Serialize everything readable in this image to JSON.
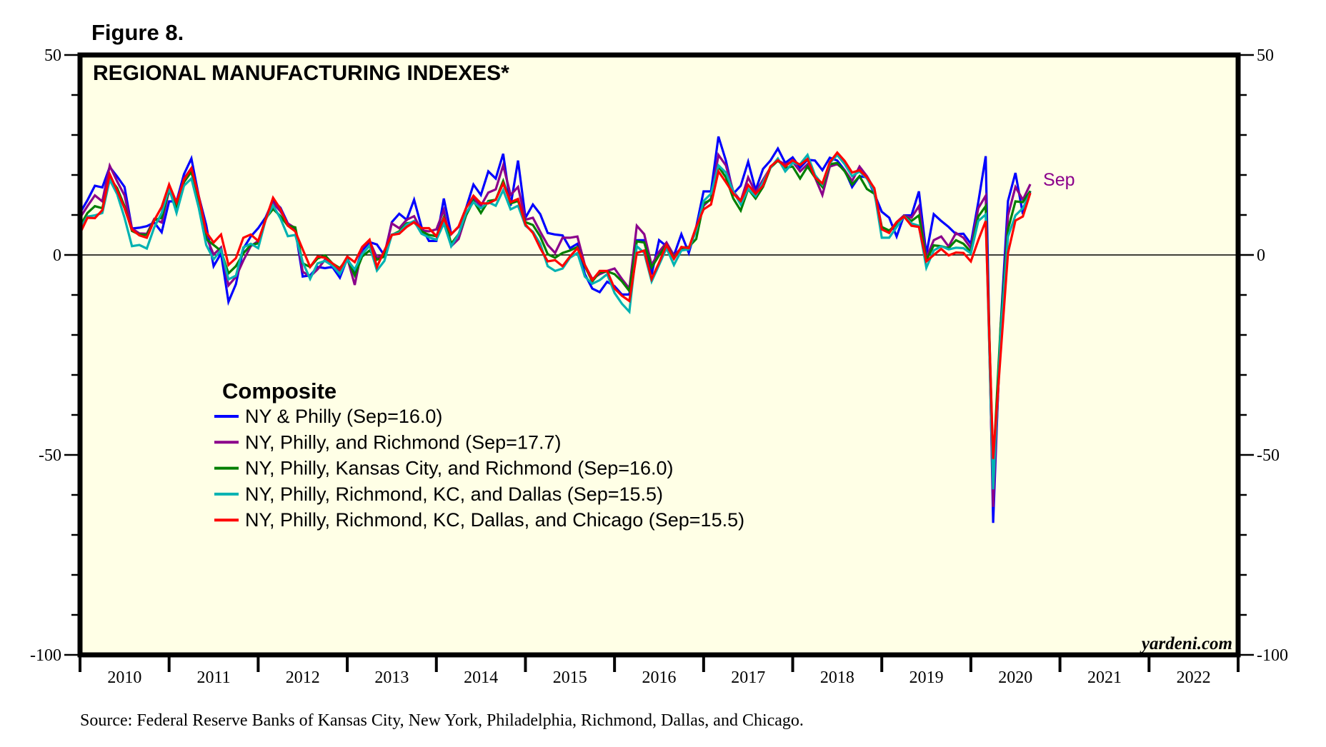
{
  "figure_label": "Figure 8.",
  "source_note": "Source: Federal Reserve Banks of Kansas City, New York, Philadelphia, Richmond, Dallas, and Chicago.",
  "brand": "yardeni.com",
  "chart_data": {
    "type": "line",
    "title": "REGIONAL MANUFACTURING INDEXES*",
    "xlabel": "",
    "ylabel": "",
    "x_start": "2010-01",
    "frequency": "monthly",
    "x_tick_labels": [
      "2010",
      "2011",
      "2012",
      "2013",
      "2014",
      "2015",
      "2016",
      "2017",
      "2018",
      "2019",
      "2020",
      "2021",
      "2022"
    ],
    "xlim": [
      "2010-01",
      "2022-12"
    ],
    "ylim": [
      -100,
      50
    ],
    "y_major_ticks": [
      50,
      0,
      -50,
      -100
    ],
    "y_minor_step": 10,
    "y_axis_sides": [
      "left",
      "right"
    ],
    "zero_line": true,
    "grid": false,
    "background": "#ffffe6",
    "end_annotation": {
      "text": "Sep",
      "color": "#8b008b"
    },
    "legend": {
      "title": "Composite",
      "placement": "center-left"
    },
    "series": [
      {
        "name": "NY & Philly (Sep=16.0)",
        "color": "#0000ff",
        "values": [
          10.5,
          13.7,
          17.3,
          16.9,
          22.0,
          19.6,
          17.0,
          6.6,
          6.8,
          7.2,
          8.1,
          5.7,
          13.4,
          13.4,
          20.2,
          24.1,
          14.6,
          7.5,
          -2.8,
          0.4,
          -11.7,
          -7.3,
          1.6,
          4.6,
          6.7,
          9.4,
          13.6,
          11.8,
          7.9,
          6.4,
          -5.4,
          -5.1,
          -3.0,
          -3.3,
          -3.0,
          -5.7,
          -0.9,
          -4.2,
          1.1,
          3.2,
          2.6,
          -0.1,
          8.2,
          10.3,
          8.8,
          13.8,
          7.0,
          3.5,
          3.5,
          14.1,
          5.2,
          7.0,
          11.7,
          17.6,
          15.0,
          20.9,
          19.1,
          25.3,
          12.3,
          23.6,
          9.3,
          12.6,
          10.2,
          5.5,
          5.1,
          4.9,
          1.7,
          2.8,
          -4.8,
          -8.4,
          -9.3,
          -6.7,
          -7.8,
          -9.9,
          -9.9,
          3.7,
          3.7,
          -4.9,
          3.7,
          2.2,
          -0.1,
          5.2,
          0.5,
          7.0,
          15.9,
          15.9,
          29.6,
          23.6,
          15.3,
          17.3,
          23.3,
          16.2,
          21.5,
          23.6,
          26.6,
          23.0,
          24.4,
          21.8,
          23.8,
          23.6,
          21.2,
          24.3,
          23.6,
          21.2,
          17.0,
          19.7,
          19.4,
          15.3,
          10.8,
          9.3,
          4.6,
          9.9,
          9.9,
          15.9,
          0.2,
          10.2,
          8.5,
          7.0,
          5.2,
          5.3,
          2.8,
          13.2,
          24.7,
          -67.0,
          -18.0,
          13.5,
          20.5,
          10.2,
          16.0
        ]
      },
      {
        "name": "NY, Philly, and Richmond (Sep=17.7)",
        "color": "#8b008b",
        "values": [
          9.3,
          12.2,
          14.9,
          13.4,
          22.3,
          18.4,
          14.9,
          6.6,
          5.4,
          5.3,
          9.0,
          8.1,
          16.1,
          12.0,
          19.1,
          21.7,
          13.4,
          4.6,
          0.1,
          1.9,
          -7.6,
          -5.5,
          -1.4,
          2.2,
          3.5,
          8.8,
          13.0,
          10.9,
          7.9,
          6.7,
          -4.2,
          -5.4,
          -3.6,
          -1.2,
          -2.4,
          -3.9,
          -0.7,
          -7.5,
          1.7,
          3.5,
          -0.7,
          0.2,
          7.9,
          6.7,
          8.8,
          9.7,
          6.1,
          5.9,
          6.4,
          11.2,
          2.2,
          4.0,
          9.9,
          14.1,
          12.3,
          15.6,
          16.4,
          22.4,
          15.0,
          17.0,
          8.8,
          9.3,
          5.8,
          2.5,
          0.5,
          4.3,
          4.3,
          4.6,
          -2.5,
          -6.0,
          -4.8,
          -4.0,
          -3.4,
          -6.0,
          -8.4,
          7.3,
          5.2,
          -2.5,
          0.8,
          3.1,
          -0.1,
          1.7,
          1.7,
          7.0,
          12.3,
          14.1,
          25.0,
          22.4,
          15.9,
          13.5,
          19.4,
          15.6,
          18.8,
          21.8,
          23.6,
          22.7,
          23.3,
          20.9,
          22.7,
          19.4,
          15.0,
          22.1,
          22.7,
          21.2,
          18.5,
          22.1,
          19.7,
          16.5,
          7.0,
          5.8,
          8.2,
          9.9,
          9.3,
          12.2,
          -0.7,
          3.7,
          4.6,
          2.1,
          5.5,
          4.3,
          1.7,
          11.7,
          14.8,
          -63.0,
          -20.0,
          9.9,
          17.0,
          13.8,
          17.7
        ]
      },
      {
        "name": "NY, Philly, Kansas City, and Richmond (Sep=16.0)",
        "color": "#007f00",
        "values": [
          7.2,
          10.5,
          12.2,
          11.7,
          19.3,
          16.7,
          12.2,
          6.0,
          5.1,
          5.0,
          8.7,
          9.3,
          16.4,
          12.2,
          18.2,
          20.8,
          13.1,
          4.0,
          2.5,
          1.0,
          -4.6,
          -2.8,
          0.4,
          2.5,
          2.9,
          9.1,
          11.5,
          9.7,
          7.3,
          6.9,
          -2.1,
          -3.0,
          -0.9,
          -0.1,
          -2.1,
          -3.3,
          -0.9,
          -5.1,
          -0.4,
          1.1,
          -1.2,
          -0.4,
          5.0,
          5.9,
          7.9,
          8.2,
          5.9,
          5.0,
          4.7,
          9.4,
          2.8,
          5.2,
          9.9,
          13.5,
          10.5,
          13.5,
          13.8,
          18.5,
          12.9,
          13.5,
          8.2,
          7.5,
          4.6,
          0.2,
          -0.7,
          0.5,
          1.1,
          2.0,
          -2.8,
          -6.6,
          -4.3,
          -4.1,
          -4.8,
          -6.6,
          -9.0,
          3.4,
          3.1,
          -3.1,
          -0.1,
          2.5,
          -0.7,
          1.7,
          2.0,
          4.0,
          12.9,
          13.8,
          22.1,
          19.4,
          14.1,
          11.1,
          16.5,
          14.1,
          17.0,
          21.8,
          23.6,
          21.8,
          22.1,
          19.1,
          22.1,
          19.4,
          17.0,
          22.7,
          23.0,
          20.9,
          17.6,
          19.7,
          16.5,
          15.3,
          7.0,
          6.1,
          7.6,
          9.7,
          8.5,
          9.9,
          -1.3,
          2.4,
          2.2,
          1.7,
          3.7,
          2.8,
          0.8,
          9.6,
          12.2,
          -53.0,
          -18.0,
          6.4,
          13.4,
          13.2,
          16.0
        ]
      },
      {
        "name": "NY, Philly, Richmond, KC, and Dallas (Sep=15.5)",
        "color": "#00b2b2",
        "values": [
          6.6,
          9.6,
          9.9,
          10.5,
          18.8,
          15.2,
          9.3,
          2.2,
          2.5,
          1.6,
          6.9,
          10.5,
          16.7,
          10.5,
          17.3,
          19.1,
          11.7,
          2.5,
          -1.1,
          1.3,
          -6.1,
          -5.2,
          1.9,
          2.8,
          1.7,
          8.8,
          12.4,
          9.1,
          4.7,
          5.0,
          -1.8,
          -6.0,
          -2.1,
          -1.5,
          -2.7,
          -4.8,
          -1.2,
          -3.6,
          0.2,
          2.3,
          -3.9,
          -1.5,
          5.1,
          5.6,
          7.6,
          8.5,
          5.3,
          4.4,
          3.8,
          7.9,
          2.2,
          5.2,
          10.5,
          13.2,
          11.7,
          13.2,
          12.3,
          16.2,
          11.4,
          12.3,
          7.3,
          5.8,
          2.8,
          -2.8,
          -4.0,
          -3.4,
          -0.7,
          0.5,
          -5.4,
          -7.2,
          -6.3,
          -4.8,
          -9.5,
          -12.2,
          -14.2,
          2.2,
          0.5,
          -6.6,
          -2.5,
          1.7,
          -2.5,
          1.1,
          1.4,
          6.1,
          13.5,
          15.3,
          22.4,
          20.6,
          15.9,
          12.6,
          16.5,
          14.7,
          18.2,
          21.8,
          24.1,
          20.9,
          23.0,
          22.7,
          25.0,
          20.0,
          17.6,
          23.0,
          25.0,
          22.7,
          19.7,
          20.9,
          19.1,
          15.9,
          4.3,
          4.3,
          7.0,
          9.7,
          7.9,
          7.3,
          -3.2,
          1.1,
          2.2,
          1.4,
          1.8,
          1.7,
          0.4,
          8.5,
          10.1,
          -58.6,
          -20.0,
          4.6,
          9.9,
          11.7,
          15.5
        ]
      },
      {
        "name": "NY, Philly, Richmond, KC, Dallas, and Chicago (Sep=15.5)",
        "color": "#ff0000",
        "values": [
          5.4,
          9.3,
          9.2,
          11.2,
          20.2,
          16.1,
          11.7,
          6.3,
          4.9,
          4.3,
          8.7,
          12.0,
          17.6,
          13.1,
          18.8,
          21.7,
          14.6,
          5.7,
          3.1,
          5.1,
          -2.5,
          -0.8,
          4.3,
          5.1,
          3.5,
          8.8,
          14.3,
          11.5,
          7.3,
          5.9,
          1.4,
          -3.0,
          -0.4,
          -0.7,
          -2.1,
          -3.6,
          -0.4,
          -1.8,
          2.0,
          3.8,
          -3.0,
          1.1,
          5.0,
          5.3,
          7.0,
          8.2,
          6.7,
          6.7,
          4.7,
          9.1,
          5.2,
          7.1,
          11.7,
          14.8,
          12.9,
          12.9,
          13.8,
          17.9,
          13.2,
          14.0,
          7.6,
          5.5,
          1.7,
          -1.6,
          -1.3,
          -2.8,
          -0.4,
          1.7,
          -2.5,
          -6.3,
          -4.0,
          -4.0,
          -8.4,
          -10.2,
          -11.5,
          0.5,
          1.1,
          -6.0,
          -1.9,
          2.5,
          -1.0,
          2.0,
          1.7,
          7.0,
          11.4,
          12.6,
          20.9,
          18.2,
          15.3,
          13.5,
          17.5,
          15.3,
          17.3,
          22.1,
          23.7,
          22.1,
          23.7,
          22.5,
          24.0,
          19.4,
          17.9,
          23.2,
          25.6,
          23.5,
          20.6,
          21.2,
          19.4,
          16.7,
          6.4,
          5.5,
          8.2,
          9.6,
          7.3,
          7.0,
          -1.6,
          0.0,
          1.5,
          -0.1,
          0.6,
          0.5,
          -1.6,
          3.7,
          8.5,
          -51.0,
          -25.0,
          0.5,
          8.6,
          9.6,
          15.5
        ]
      }
    ]
  }
}
